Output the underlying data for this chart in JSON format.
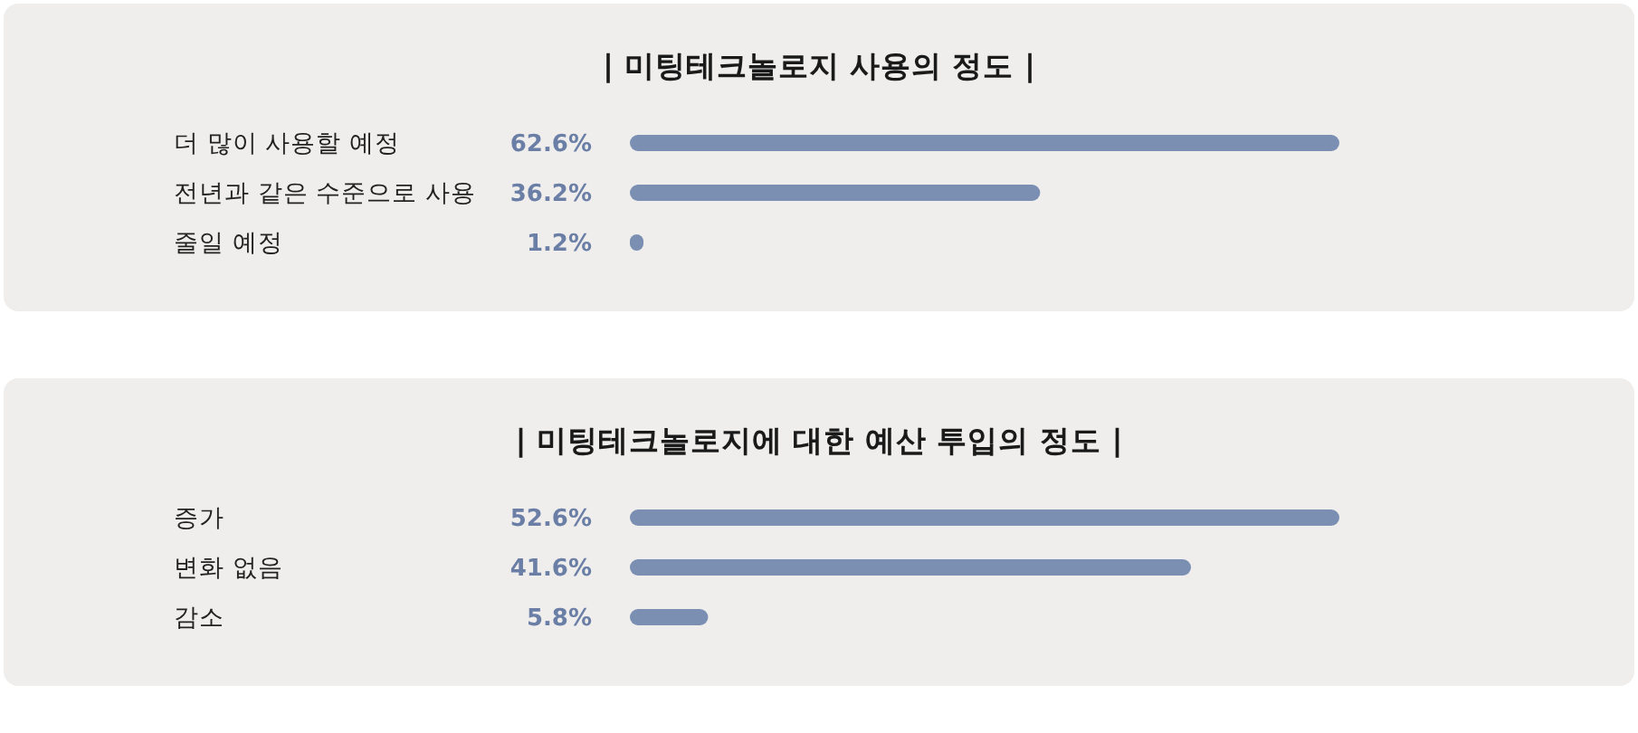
{
  "chart_data": [
    {
      "type": "bar",
      "orientation": "horizontal",
      "title": "| 미팅테크놀로지 사용의 정도 |",
      "categories": [
        "더 많이 사용할 예정",
        "전년과 같은 수준으로 사용",
        "줄일 예정"
      ],
      "values": [
        62.6,
        36.2,
        1.2
      ],
      "value_labels": [
        "62.6%",
        "36.2%",
        "1.2%"
      ],
      "color": "#7b8fb2"
    },
    {
      "type": "bar",
      "orientation": "horizontal",
      "title": "| 미팅테크놀로지에 대한 예산 투입의 정도 |",
      "categories": [
        "증가",
        "변화 없음",
        "감소"
      ],
      "values": [
        52.6,
        41.6,
        5.8
      ],
      "value_labels": [
        "52.6%",
        "41.6%",
        "5.8%"
      ],
      "color": "#7b8fb2"
    }
  ]
}
